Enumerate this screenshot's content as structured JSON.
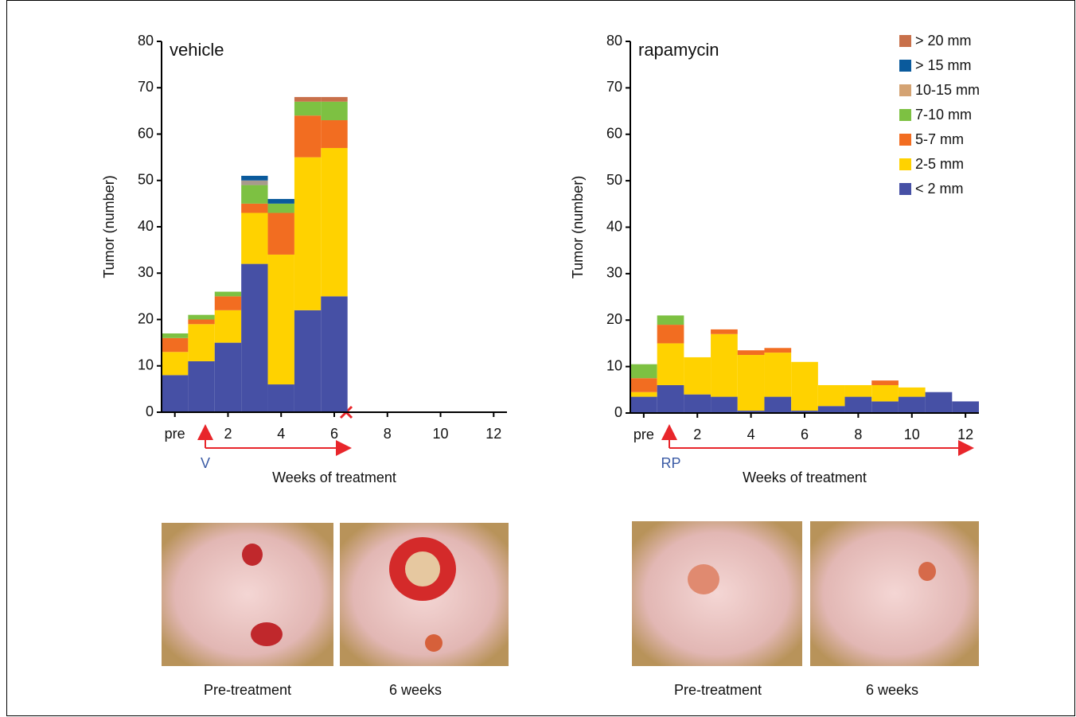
{
  "chart_data": [
    {
      "type": "bar",
      "stacked": true,
      "title": "vehicle",
      "y_label": "Tumor (number)",
      "x_label": "Weeks of treatment",
      "annotation": "V",
      "x": [
        0,
        1,
        2,
        3,
        4,
        5,
        6
      ],
      "xlim": [
        -0.5,
        12.5
      ],
      "xticks": [
        {
          "value": 0,
          "label": "pre"
        },
        2,
        4,
        6,
        8,
        10,
        12
      ],
      "ylim": [
        0,
        80
      ],
      "yticks": [
        0,
        10,
        20,
        30,
        40,
        50,
        60,
        70,
        80
      ],
      "series": [
        {
          "color": "#4650a5",
          "values": [
            8,
            11,
            15,
            32,
            6,
            22,
            25
          ]
        },
        {
          "color": "#ffd200",
          "values": [
            5,
            8,
            7,
            11,
            28,
            33,
            32
          ]
        },
        {
          "color": "#f26d21",
          "values": [
            3,
            1,
            3,
            2,
            9,
            9,
            6
          ]
        },
        {
          "color": "#7dc142",
          "values": [
            1,
            1,
            1,
            4,
            2,
            3,
            4
          ]
        },
        {
          "color": "#a89a8c",
          "values": [
            0,
            0,
            0,
            1,
            0,
            0,
            0
          ]
        },
        {
          "color": "#0a5a9c",
          "values": [
            0,
            0,
            0,
            1,
            1,
            0,
            0
          ]
        },
        {
          "color": "#c8704a",
          "values": [
            0,
            0,
            0,
            0,
            0,
            1,
            1
          ]
        }
      ]
    },
    {
      "type": "bar",
      "stacked": true,
      "title": "rapamycin",
      "y_label": "Tumor (number)",
      "x_label": "Weeks of treatment",
      "annotation": "RP",
      "legend": "upper right",
      "x": [
        0,
        1,
        2,
        3,
        4,
        5,
        6,
        7,
        8,
        9,
        10,
        11,
        12
      ],
      "xlim": [
        -0.5,
        12.5
      ],
      "xticks": [
        {
          "value": 0,
          "label": "pre"
        },
        2,
        4,
        6,
        8,
        10,
        12
      ],
      "ylim": [
        0,
        80
      ],
      "yticks": [
        0,
        10,
        20,
        30,
        40,
        50,
        60,
        70,
        80
      ],
      "series": [
        {
          "name": "< 2 mm",
          "color": "#4650a5",
          "values": [
            3.5,
            6,
            4,
            3.5,
            0.5,
            3.5,
            0.5,
            1.5,
            3.5,
            2.5,
            3.5,
            4.5,
            2.5
          ]
        },
        {
          "name": "2-5 mm",
          "color": "#ffd200",
          "values": [
            1,
            9,
            8,
            13.5,
            12,
            9.5,
            10.5,
            4.5,
            2.5,
            3.5,
            2,
            0,
            0
          ]
        },
        {
          "name": "5-7 mm",
          "color": "#f26d21",
          "values": [
            3,
            4,
            0,
            1,
            1,
            1,
            0,
            0,
            0,
            1,
            0,
            0,
            0
          ]
        },
        {
          "name": "7-10 mm",
          "color": "#7dc142",
          "values": [
            3,
            2,
            0,
            0,
            0,
            0,
            0,
            0,
            0,
            0,
            0,
            0,
            0
          ]
        },
        {
          "name": "10-15 mm",
          "color": "#d4a373",
          "values": [
            0,
            0,
            0,
            0,
            0,
            0,
            0,
            0,
            0,
            0,
            0,
            0,
            0
          ]
        },
        {
          "name": "> 15 mm",
          "color": "#0a5a9c",
          "values": [
            0,
            0,
            0,
            0,
            0,
            0,
            0,
            0,
            0,
            0,
            0,
            0,
            0
          ]
        },
        {
          "name": "> 20 mm",
          "color": "#c8704a",
          "values": [
            0,
            0,
            0,
            0,
            0,
            0,
            0,
            0,
            0,
            0,
            0,
            0,
            0
          ]
        }
      ]
    }
  ],
  "photo_captions": [
    "Pre-treatment",
    "6 weeks",
    "Pre-treatment",
    "6 weeks"
  ]
}
